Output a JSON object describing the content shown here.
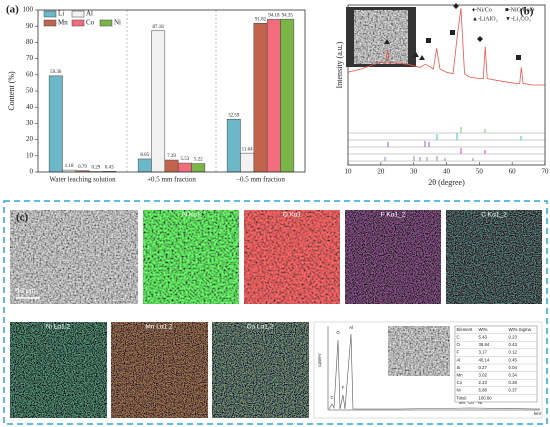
{
  "panel_labels": [
    "(a)",
    "(b)",
    "(c)"
  ],
  "chart_data": [
    {
      "type": "bar",
      "y_label": "Content (%)",
      "categories": [
        "Water leaching solution",
        "+0.5 mm fraction",
        "−0.5 mm fraction"
      ],
      "series": [
        {
          "name": "Li",
          "color": "#6cb7c8",
          "values": [
            59.36,
            8.05,
            32.59
          ]
        },
        {
          "name": "Al",
          "color": "#f2f2f2",
          "values": [
            1.18,
            87.18,
            11.64
          ]
        },
        {
          "name": "Mn",
          "color": "#c0654b",
          "values": [
            0.79,
            7.39,
            91.82
          ]
        },
        {
          "name": "Co",
          "color": "#f26c7c",
          "values": [
            0.29,
            5.53,
            94.18
          ]
        },
        {
          "name": "Ni",
          "color": "#7bb548",
          "values": [
            0.43,
            5.22,
            94.35
          ]
        }
      ],
      "ylim": [
        0,
        100
      ],
      "yticks": [
        0,
        10,
        20,
        30,
        40,
        50,
        60,
        70,
        80,
        90,
        100
      ]
    },
    {
      "type": "line",
      "x_label": "2θ (degree)",
      "y_label": "Intensity (a.u.)",
      "legend": [
        "♦-Ni/Co",
        "■-NiO/CoO",
        "▲-LiAlO₂",
        "▼-Li₂CO₃"
      ],
      "x": [
        10,
        14,
        18,
        20,
        21.5,
        22,
        22.5,
        24,
        28,
        32,
        33.5,
        34.5,
        36,
        37,
        38,
        40,
        42,
        43.3,
        44.4,
        45.5,
        47,
        50,
        51.2,
        51.8,
        52.4,
        55,
        58,
        61,
        62.3,
        62.8,
        63.3,
        66,
        70
      ],
      "series": [
        {
          "color": "#e8574f",
          "values": [
            58,
            60,
            63,
            64,
            64,
            72,
            64,
            64,
            63,
            61,
            63,
            62,
            60,
            73,
            60,
            58,
            57,
            81,
            98,
            57,
            55,
            54,
            54,
            74,
            54,
            53,
            52,
            51,
            51,
            61,
            51,
            50,
            50
          ]
        }
      ],
      "xlim": [
        10,
        70
      ],
      "xticks": [
        10,
        20,
        30,
        40,
        50,
        60,
        70
      ],
      "ylim": [
        0,
        100
      ]
    }
  ],
  "eds_maps": [
    "Al Kα1",
    "O Kα1",
    "F Kα1_2",
    "C Kα1_2",
    "Ni Lα1,2",
    "Mn Lα1,2",
    "Co Lα1,2"
  ],
  "scale_bar": "50 μm",
  "spectrum": {
    "y_label": "cps/eV",
    "x_label": "keV",
    "peaks": [
      "O",
      "Al",
      "C",
      "F",
      "Ni",
      "Mn",
      "Co"
    ]
  },
  "eds_table": {
    "header": [
      "Element",
      "Wt%",
      "Wt% Sigma"
    ],
    "rows": [
      [
        "C",
        "5.43",
        "0.23"
      ],
      [
        "O",
        "39.84",
        "0.43"
      ],
      [
        "F",
        "3.17",
        "0.12"
      ],
      [
        "Al",
        "40.14",
        "0.45"
      ],
      [
        "Si",
        "0.27",
        "0.04"
      ],
      [
        "Mn",
        "3.02",
        "0.34"
      ],
      [
        "Co",
        "2.23",
        "0.28"
      ],
      [
        "Ni",
        "5.88",
        "0.37"
      ],
      [
        "Total:",
        "100.00",
        ""
      ]
    ]
  }
}
